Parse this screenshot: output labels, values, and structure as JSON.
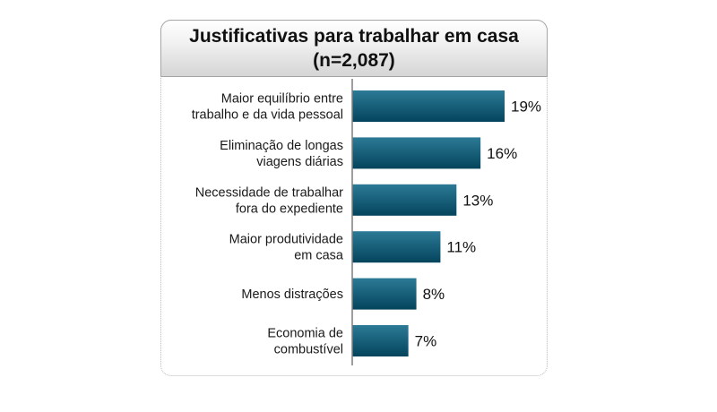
{
  "title": {
    "line1": "Justificativas para trabalhar em casa",
    "line2": "(n=2,087)"
  },
  "colors": {
    "bar_top": "#2c7a96",
    "bar_bottom": "#04445c",
    "axis": "#7f7f7f"
  },
  "chart_data": {
    "type": "bar",
    "orientation": "horizontal",
    "title": "Justificativas para trabalhar em casa (n=2,087)",
    "categories": [
      [
        "Maior equilíbrio entre",
        "trabalho e da vida pessoal"
      ],
      [
        "Eliminação de longas",
        "viagens diárias"
      ],
      [
        "Necessidade de trabalhar",
        "fora do expediente"
      ],
      [
        "Maior produtividade",
        "em casa"
      ],
      [
        "Menos distrações"
      ],
      [
        "Economia de",
        "combustível"
      ]
    ],
    "values": [
      19,
      16,
      13,
      11,
      8,
      7
    ],
    "value_labels": [
      "19%",
      "16%",
      "13%",
      "11%",
      "8%",
      "7%"
    ],
    "unit": "%",
    "xlim": [
      0,
      19
    ],
    "grid": false,
    "legend": "none"
  }
}
